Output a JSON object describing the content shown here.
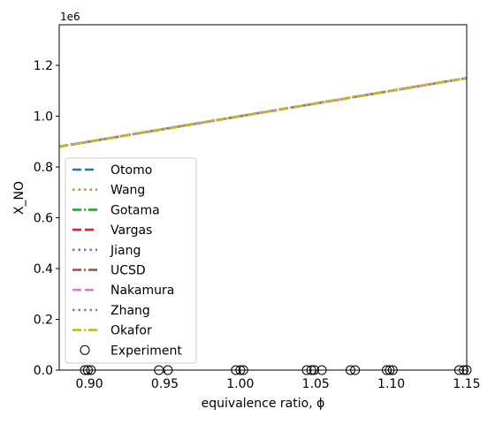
{
  "chart_data": {
    "type": "line",
    "xlabel": "equivalence ratio, ϕ",
    "ylabel": "X_NO",
    "offset_label": "1e6",
    "xlim": [
      0.88,
      1.15
    ],
    "ylim": [
      0,
      1360000
    ],
    "x_ticks": [
      0.9,
      0.95,
      1.0,
      1.05,
      1.1,
      1.15
    ],
    "x_tick_labels": [
      "0.90",
      "0.95",
      "1.00",
      "1.05",
      "1.10",
      "1.15"
    ],
    "y_ticks": [
      0,
      200000,
      400000,
      600000,
      800000,
      1000000,
      1200000
    ],
    "y_tick_labels": [
      "0.0",
      "0.2",
      "0.4",
      "0.6",
      "0.8",
      "1.0",
      "1.2"
    ],
    "grid": false,
    "legend_position": "lower left",
    "series": [
      {
        "name": "Otomo",
        "color": "#1f77b4",
        "style": "dashed",
        "x": [
          0.88,
          1.15
        ],
        "y": [
          880000,
          1150000
        ]
      },
      {
        "name": "Wang",
        "color": "#ff7f0e",
        "style": "dotted",
        "x": [
          0.88,
          1.15
        ],
        "y": [
          880000,
          1150000
        ]
      },
      {
        "name": "Gotama",
        "color": "#2ca02c",
        "style": "dashdot",
        "x": [
          0.88,
          1.15
        ],
        "y": [
          880000,
          1150000
        ]
      },
      {
        "name": "Vargas",
        "color": "#d62728",
        "style": "dashed",
        "x": [
          0.88,
          1.15
        ],
        "y": [
          880000,
          1150000
        ]
      },
      {
        "name": "Jiang",
        "color": "#9467bd",
        "style": "dotted",
        "x": [
          0.88,
          1.15
        ],
        "y": [
          880000,
          1150000
        ]
      },
      {
        "name": "UCSD",
        "color": "#8c564b",
        "style": "dashdot",
        "x": [
          0.88,
          1.15
        ],
        "y": [
          880000,
          1150000
        ]
      },
      {
        "name": "Nakamura",
        "color": "#e377c2",
        "style": "dashed",
        "x": [
          0.88,
          1.15
        ],
        "y": [
          880000,
          1150000
        ]
      },
      {
        "name": "Zhang",
        "color": "#7f7f7f",
        "style": "dotted",
        "x": [
          0.88,
          1.15
        ],
        "y": [
          880000,
          1150000
        ]
      },
      {
        "name": "Okafor",
        "color": "#bcbd22",
        "style": "dashdot",
        "x": [
          0.88,
          1.15
        ],
        "y": [
          880000,
          1150000
        ]
      }
    ],
    "experiment": {
      "name": "Experiment",
      "marker": "open-circle",
      "x": [
        0.897,
        0.899,
        0.901,
        0.946,
        0.952,
        0.997,
        1.0,
        1.002,
        1.044,
        1.047,
        1.049,
        1.054,
        1.073,
        1.076,
        1.097,
        1.099,
        1.101,
        1.145,
        1.148,
        1.15
      ],
      "y": [
        0,
        0,
        0,
        0,
        0,
        0,
        0,
        0,
        0,
        0,
        0,
        0,
        0,
        0,
        0,
        0,
        0,
        0,
        0,
        0
      ]
    }
  }
}
